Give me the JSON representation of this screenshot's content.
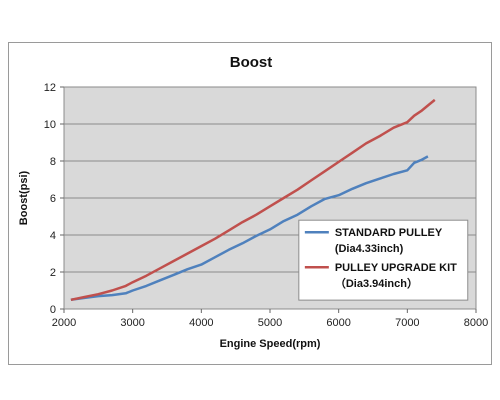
{
  "chart_data": {
    "type": "line",
    "title": "Boost",
    "xlabel": "Engine Speed(rpm)",
    "ylabel": "Boost(psi)",
    "xlim": [
      2000,
      8000
    ],
    "ylim": [
      0,
      12
    ],
    "xticks": [
      2000,
      3000,
      4000,
      5000,
      6000,
      7000,
      8000
    ],
    "yticks": [
      0,
      2,
      4,
      6,
      8,
      10,
      12
    ],
    "grid": "horizontal",
    "plot_background": "#d9d9d9",
    "legend_position": "right-lower, inside plot",
    "series": [
      {
        "name": "STANDARD PULLEY",
        "name_line2": "(Dia4.33inch)",
        "color": "#4f81bd",
        "x": [
          2100,
          2300,
          2500,
          2700,
          2900,
          3000,
          3200,
          3400,
          3600,
          3800,
          4000,
          4200,
          4400,
          4600,
          4800,
          5000,
          5200,
          5400,
          5600,
          5800,
          6000,
          6200,
          6400,
          6600,
          6800,
          7000,
          7100,
          7200,
          7300
        ],
        "y": [
          0.5,
          0.6,
          0.7,
          0.75,
          0.85,
          1.0,
          1.25,
          1.55,
          1.85,
          2.15,
          2.4,
          2.8,
          3.2,
          3.55,
          3.95,
          4.3,
          4.75,
          5.1,
          5.55,
          5.95,
          6.15,
          6.5,
          6.8,
          7.05,
          7.3,
          7.5,
          7.9,
          8.05,
          8.25
        ]
      },
      {
        "name": "PULLEY UPGRADE KIT",
        "name_line2": "（Dia3.94inch）",
        "color": "#c0504d",
        "x": [
          2100,
          2300,
          2500,
          2700,
          2900,
          3000,
          3200,
          3400,
          3600,
          3800,
          4000,
          4200,
          4400,
          4600,
          4800,
          5000,
          5200,
          5400,
          5600,
          5800,
          6000,
          6200,
          6400,
          6600,
          6800,
          7000,
          7100,
          7200,
          7300,
          7400
        ],
        "y": [
          0.5,
          0.65,
          0.8,
          1.0,
          1.25,
          1.45,
          1.8,
          2.2,
          2.6,
          3.0,
          3.4,
          3.8,
          4.25,
          4.7,
          5.1,
          5.55,
          6.0,
          6.45,
          6.95,
          7.45,
          7.95,
          8.45,
          8.95,
          9.35,
          9.8,
          10.1,
          10.45,
          10.7,
          11.0,
          11.3
        ]
      }
    ]
  }
}
